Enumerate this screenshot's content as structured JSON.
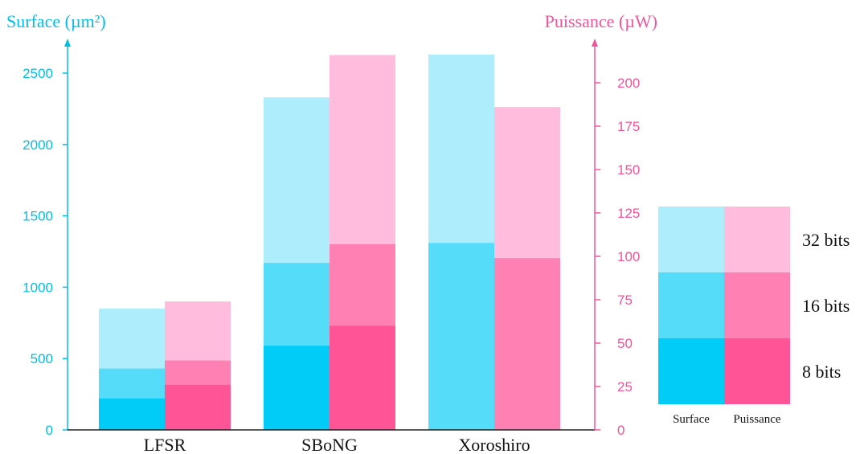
{
  "chart_data": {
    "type": "bar",
    "categories": [
      "LFSR",
      "SBoNG",
      "Xoroshiro"
    ],
    "stack_levels": [
      "8 bits",
      "16 bits",
      "32 bits"
    ],
    "left_axis": {
      "label": "Surface (µm²)",
      "ylim": [
        0,
        2600
      ],
      "ticks": [
        0,
        500,
        1000,
        1500,
        2000,
        2500
      ]
    },
    "right_axis": {
      "label": "Puissance (µW)",
      "ylim": [
        0,
        212
      ],
      "ticks": [
        0,
        25,
        50,
        75,
        100,
        125,
        150,
        175,
        200
      ]
    },
    "series": [
      {
        "name": "Surface",
        "axis": "left",
        "values": {
          "8 bits": [
            220,
            590,
            null
          ],
          "16 bits": [
            430,
            1170,
            1310
          ],
          "32 bits": [
            850,
            2330,
            2630
          ]
        }
      },
      {
        "name": "Puissance",
        "axis": "right",
        "values": {
          "8 bits": [
            26,
            60,
            null
          ],
          "16 bits": [
            40,
            107,
            99
          ],
          "32 bits": [
            74,
            216,
            186
          ]
        }
      }
    ],
    "legend": {
      "placement": "right",
      "columns": [
        "Surface",
        "Puissance"
      ],
      "rows": [
        "32 bits",
        "16 bits",
        "8 bits"
      ]
    },
    "grid": false
  },
  "colors": {
    "surface": [
      "#00cdf7",
      "#55dcf9",
      "#aeedfc"
    ],
    "puissance": [
      "#ff5597",
      "#ff80b2",
      "#ffbcdd"
    ],
    "surface_axis": "#00bfe6",
    "puissance_axis": "#f0559a"
  }
}
